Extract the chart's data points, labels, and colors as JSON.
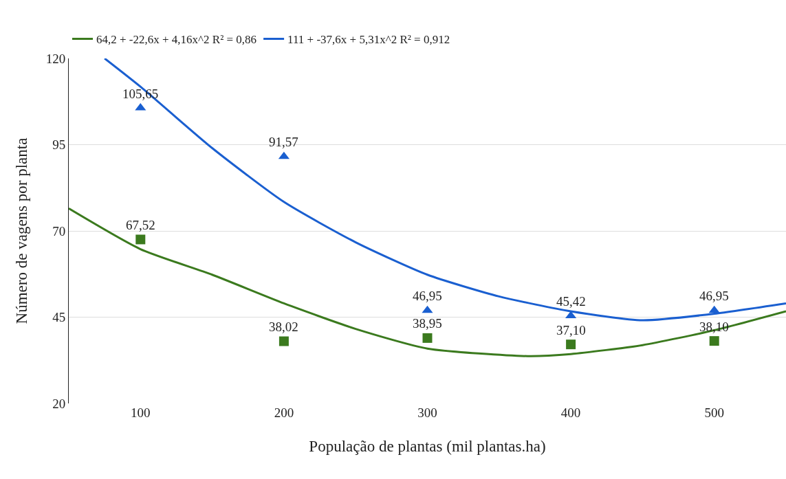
{
  "chart_data": {
    "type": "scatter",
    "xlabel": "População de plantas (mil plantas.ha)",
    "ylabel": "Número de vagens por planta",
    "xlim": [
      50,
      550
    ],
    "xticks": [
      100,
      200,
      300,
      400,
      500
    ],
    "ylim": [
      20,
      120
    ],
    "yticks": [
      20,
      45,
      70,
      95,
      120
    ],
    "grid": "y",
    "legend": "top",
    "series": [
      {
        "marker": "square",
        "color": "#3b7a1e",
        "x": [
          100,
          200,
          300,
          400,
          500
        ],
        "values": [
          67.52,
          38.02,
          38.95,
          37.1,
          38.1
        ],
        "value_labels": [
          "67,52",
          "38,02",
          "38,95",
          "37,10",
          "38,10"
        ]
      },
      {
        "type": "line",
        "name": "64,2 + -22,6x + 4,16x^2 R² = 0,86",
        "marker": "none",
        "color": "#3b7a1e",
        "x": [
          50,
          100,
          150,
          200,
          250,
          300,
          370,
          400,
          450,
          500,
          550
        ],
        "values": [
          76.5,
          64.7,
          57.3,
          49,
          41.6,
          35.9,
          33.7,
          34.3,
          36.9,
          41.2,
          46.7
        ]
      },
      {
        "marker": "triangle",
        "color": "#1a5fd0",
        "x": [
          100,
          200,
          300,
          400,
          500
        ],
        "values": [
          105.65,
          91.57,
          46.95,
          45.42,
          46.95
        ],
        "value_labels": [
          "105,65",
          "91,57",
          "46,95",
          "45,42",
          "46,95"
        ]
      },
      {
        "type": "line",
        "name": "111 + -37,6x + 5,31x^2 R² = 0,912",
        "marker": "none",
        "color": "#1a5fd0",
        "x": [
          75,
          100,
          150,
          200,
          250,
          300,
          350,
          400,
          450,
          500,
          550
        ],
        "values": [
          120,
          111.8,
          94,
          78.4,
          66.7,
          57.3,
          51,
          46.7,
          44.1,
          46,
          49
        ]
      }
    ]
  }
}
